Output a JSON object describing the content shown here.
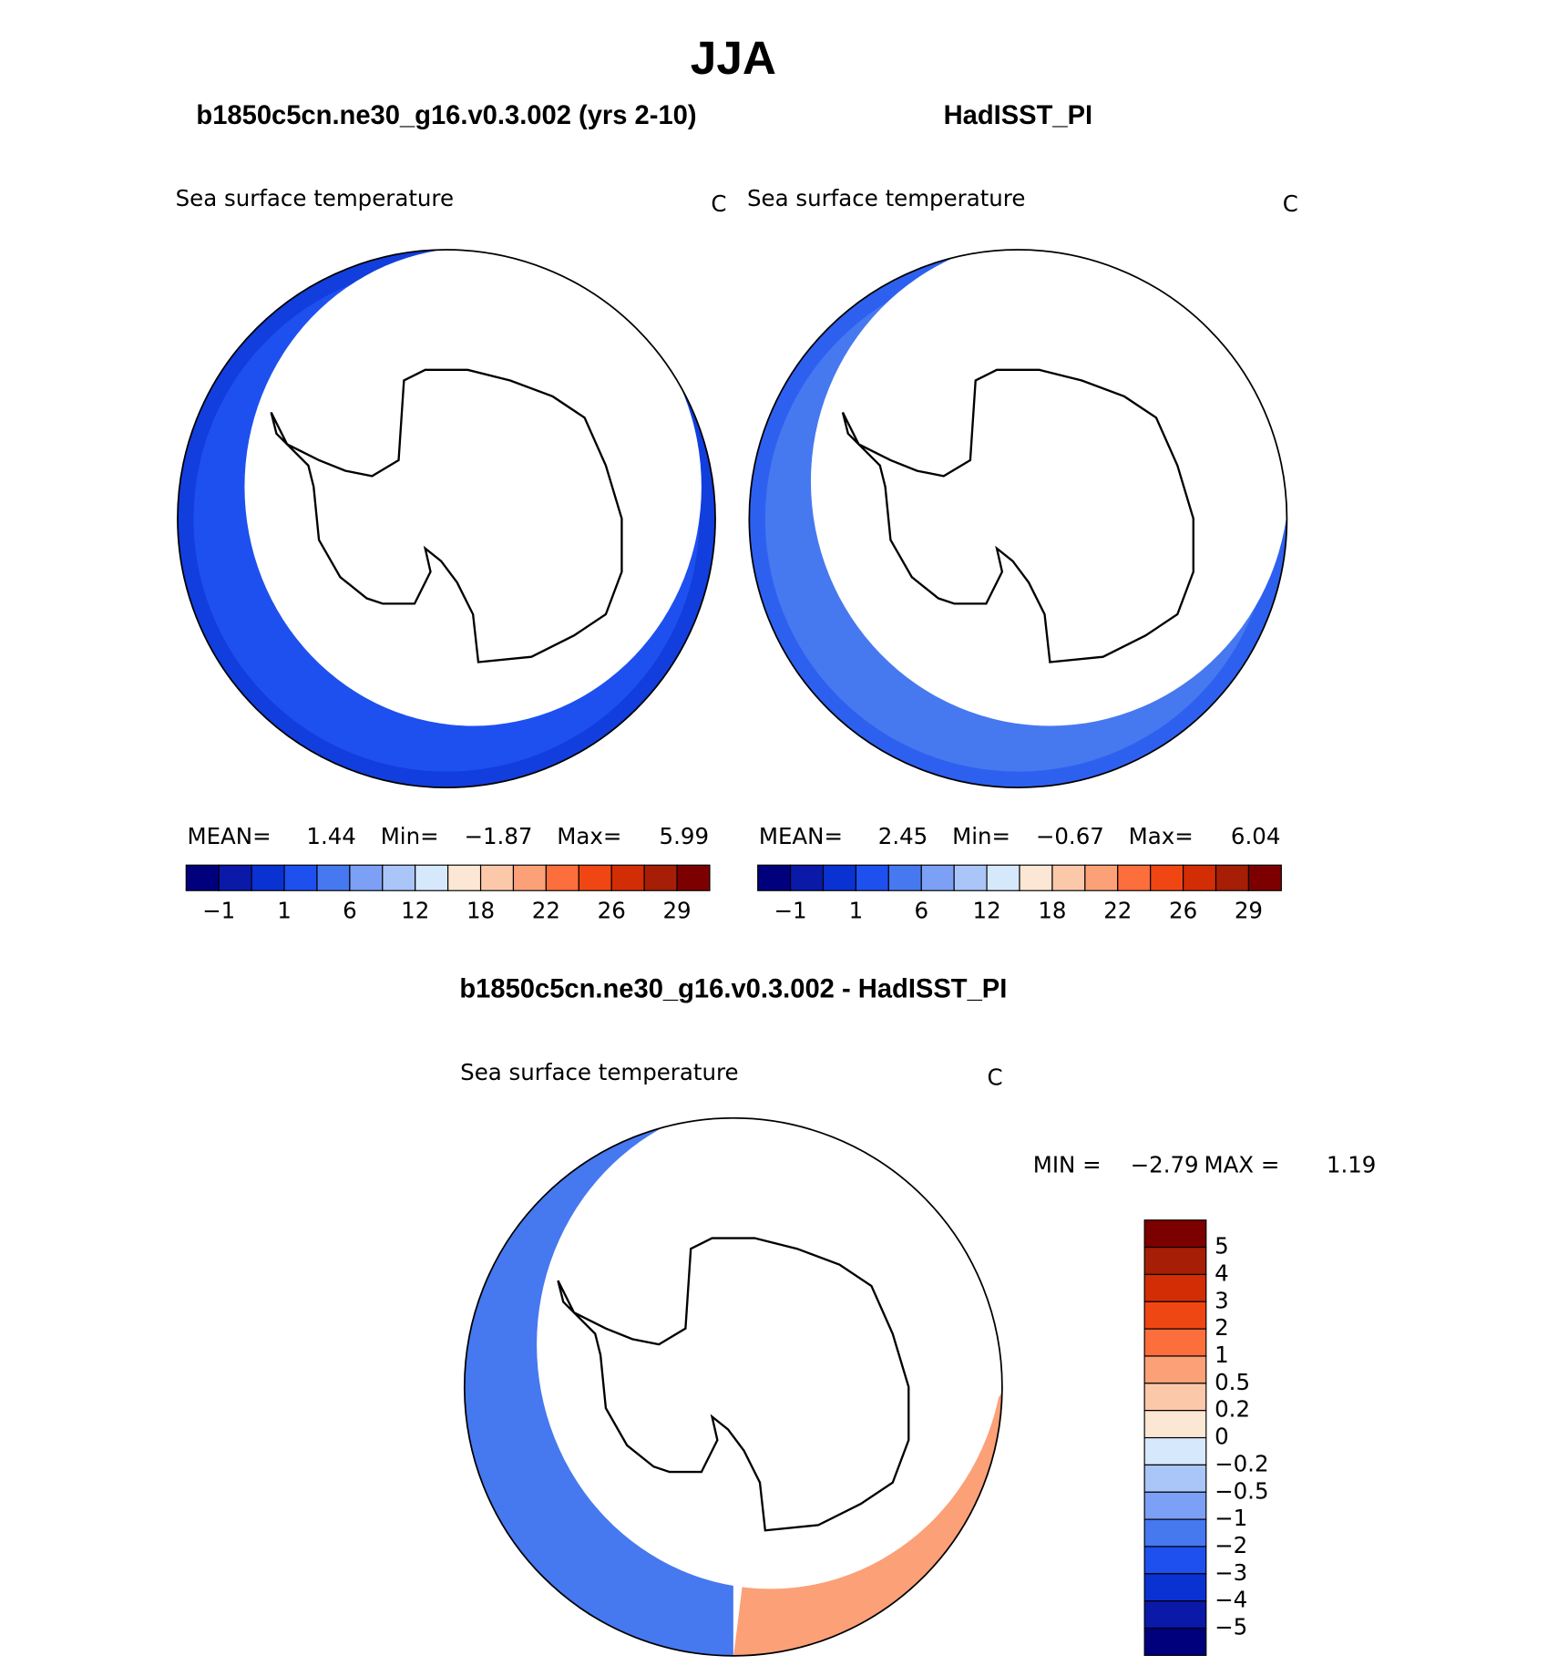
{
  "title": "JJA",
  "panels": [
    {
      "title": "b1850c5cn.ne30_g16.v0.3.002 (yrs 2-10)",
      "variable": "Sea surface temperature",
      "units": "C",
      "stats": [
        {
          "label": "MEAN=",
          "value": "1.44"
        },
        {
          "label": "Min=",
          "value": "−1.87"
        },
        {
          "label": "Max=",
          "value": "5.99"
        }
      ],
      "colorbar": {
        "labels": [
          "−1",
          "1",
          "6",
          "12",
          "18",
          "22",
          "26",
          "29"
        ],
        "colors": [
          "#00007d",
          "#0a19a8",
          "#0a32d2",
          "#1e50f0",
          "#4678f0",
          "#7ba0f5",
          "#aac5f8",
          "#d6e8fc",
          "#fce6d4",
          "#fcc8aa",
          "#fca078",
          "#fc6e3c",
          "#f04614",
          "#d22d05",
          "#a51e05",
          "#7d0000"
        ]
      }
    },
    {
      "title": "HadISST_PI",
      "variable": "Sea surface temperature",
      "units": "C",
      "stats": [
        {
          "label": "MEAN=",
          "value": "2.45"
        },
        {
          "label": "Min=",
          "value": "−0.67"
        },
        {
          "label": "Max=",
          "value": "6.04"
        }
      ],
      "colorbar": {
        "labels": [
          "−1",
          "1",
          "6",
          "12",
          "18",
          "22",
          "26",
          "29"
        ],
        "colors": [
          "#00007d",
          "#0a19a8",
          "#0a32d2",
          "#1e50f0",
          "#4678f0",
          "#7ba0f5",
          "#aac5f8",
          "#d6e8fc",
          "#fce6d4",
          "#fcc8aa",
          "#fca078",
          "#fc6e3c",
          "#f04614",
          "#d22d05",
          "#a51e05",
          "#7d0000"
        ]
      }
    },
    {
      "title": "b1850c5cn.ne30_g16.v0.3.002 - HadISST_PI",
      "variable": "Sea surface temperature",
      "units": "C",
      "stats": [
        {
          "label": "MIN =",
          "value": "−2.79"
        },
        {
          "label": "MAX =",
          "value": "1.19"
        }
      ],
      "colorbar": {
        "labels": [
          "5",
          "4",
          "3",
          "2",
          "1",
          "0.5",
          "0.2",
          "0",
          "−0.2",
          "−0.5",
          "−1",
          "−2",
          "−3",
          "−4",
          "−5"
        ],
        "colors": [
          "#7d0000",
          "#a51e05",
          "#d22d05",
          "#f04614",
          "#fc6e3c",
          "#fca078",
          "#fcc8aa",
          "#fce6d4",
          "#d6e8fc",
          "#aac5f8",
          "#7ba0f5",
          "#4678f0",
          "#1e50f0",
          "#0a32d2",
          "#0a19a8",
          "#00007d"
        ]
      }
    }
  ]
}
